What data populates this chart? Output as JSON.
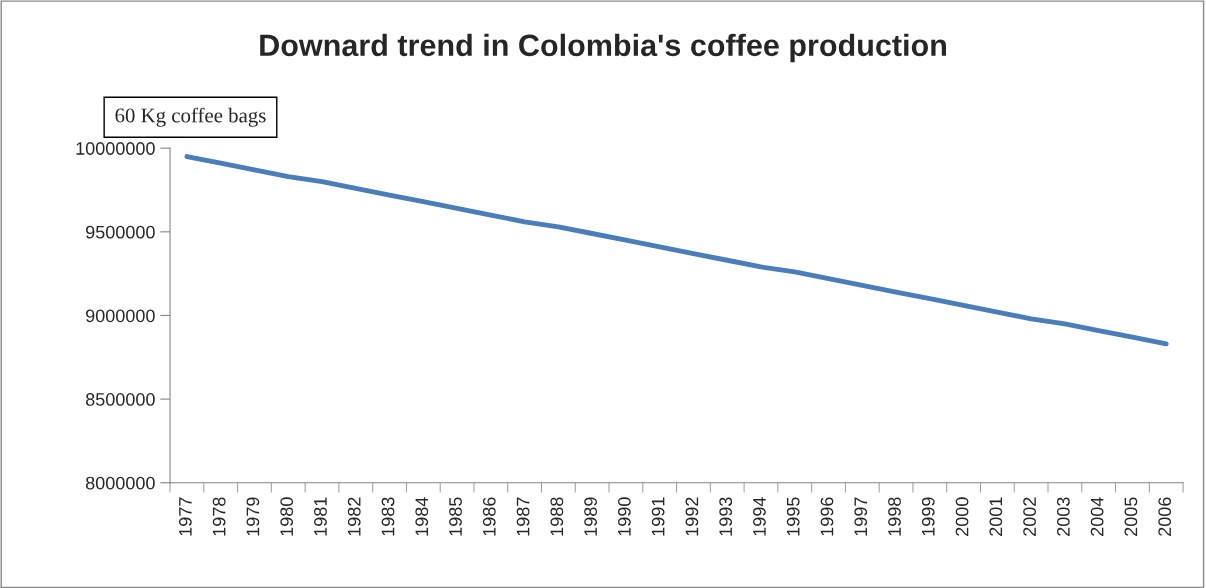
{
  "chart_data": {
    "type": "line",
    "title": "Downard trend in Colombia's coffee production",
    "annotations": [
      "60 Kg coffee bags"
    ],
    "categories": [
      "1977",
      "1978",
      "1979",
      "1980",
      "1981",
      "1982",
      "1983",
      "1984",
      "1985",
      "1986",
      "1987",
      "1988",
      "1989",
      "1990",
      "1991",
      "1992",
      "1993",
      "1994",
      "1995",
      "1996",
      "1997",
      "1998",
      "1999",
      "2000",
      "2001",
      "2002",
      "2003",
      "2004",
      "2005",
      "2006"
    ],
    "series": [
      {
        "color": "#4a7ebb",
        "values": [
          9950000,
          9910000,
          9870000,
          9830000,
          9800000,
          9760000,
          9720000,
          9680000,
          9640000,
          9600000,
          9560000,
          9530000,
          9490000,
          9450000,
          9410000,
          9370000,
          9330000,
          9290000,
          9260000,
          9220000,
          9180000,
          9140000,
          9100000,
          9060000,
          9020000,
          8980000,
          8950000,
          8910000,
          8870000,
          8830000
        ]
      }
    ],
    "ylim": [
      8000000,
      10000000
    ],
    "yticks": [
      8000000,
      8500000,
      9000000,
      9500000,
      10000000
    ],
    "grid": false,
    "marker": "none",
    "line_style": "solid"
  }
}
